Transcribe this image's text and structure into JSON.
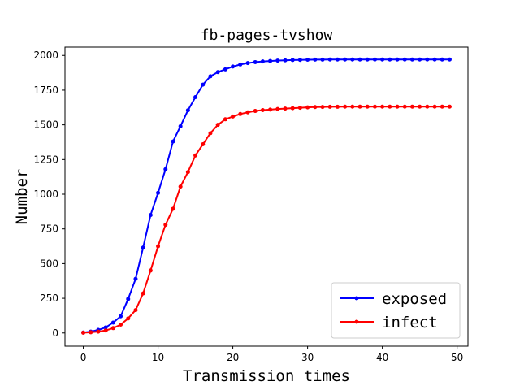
{
  "chart_data": {
    "type": "line",
    "title": "fb-pages-tvshow",
    "xlabel": "Transmission times",
    "ylabel": "Number",
    "xlim": [
      -2.45,
      51.45
    ],
    "ylim": [
      -95,
      2060
    ],
    "xticks": [
      0,
      10,
      20,
      30,
      40,
      50
    ],
    "yticks": [
      0,
      250,
      500,
      750,
      1000,
      1250,
      1500,
      1750,
      2000
    ],
    "legend_position": "lower-right",
    "x": [
      0,
      1,
      2,
      3,
      4,
      5,
      6,
      7,
      8,
      9,
      10,
      11,
      12,
      13,
      14,
      15,
      16,
      17,
      18,
      19,
      20,
      21,
      22,
      23,
      24,
      25,
      26,
      27,
      28,
      29,
      30,
      31,
      32,
      33,
      34,
      35,
      36,
      37,
      38,
      39,
      40,
      41,
      42,
      43,
      44,
      45,
      46,
      47,
      48,
      49
    ],
    "series": [
      {
        "name": "exposed",
        "color": "#0000ff",
        "values": [
          3,
          10,
          22,
          40,
          75,
          120,
          245,
          390,
          615,
          850,
          1010,
          1180,
          1380,
          1490,
          1605,
          1700,
          1790,
          1850,
          1880,
          1900,
          1920,
          1935,
          1945,
          1952,
          1957,
          1960,
          1963,
          1965,
          1967,
          1968,
          1969,
          1970,
          1970,
          1971,
          1971,
          1971,
          1971,
          1971,
          1971,
          1971,
          1971,
          1971,
          1971,
          1971,
          1971,
          1971,
          1971,
          1971,
          1971,
          1971
        ]
      },
      {
        "name": "infect",
        "color": "#ff0000",
        "values": [
          2,
          5,
          10,
          18,
          35,
          60,
          105,
          165,
          285,
          450,
          625,
          780,
          895,
          1055,
          1160,
          1280,
          1360,
          1440,
          1500,
          1540,
          1560,
          1578,
          1590,
          1600,
          1606,
          1610,
          1614,
          1617,
          1620,
          1623,
          1626,
          1628,
          1629,
          1630,
          1630,
          1631,
          1631,
          1631,
          1631,
          1631,
          1631,
          1631,
          1631,
          1631,
          1631,
          1631,
          1631,
          1631,
          1631,
          1631
        ]
      }
    ]
  }
}
